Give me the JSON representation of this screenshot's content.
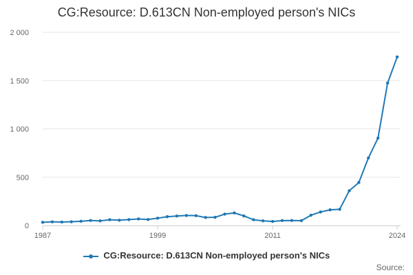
{
  "chart_data": {
    "type": "line",
    "title": "CG:Resource: D.613CN Non-employed person's NICs",
    "xlabel": "",
    "ylabel": "",
    "x": [
      1987,
      1988,
      1989,
      1990,
      1991,
      1992,
      1993,
      1994,
      1995,
      1996,
      1997,
      1998,
      1999,
      2000,
      2001,
      2002,
      2003,
      2004,
      2005,
      2006,
      2007,
      2008,
      2009,
      2010,
      2011,
      2012,
      2013,
      2014,
      2015,
      2016,
      2017,
      2018,
      2019,
      2020,
      2021,
      2022,
      2023,
      2024
    ],
    "series": [
      {
        "name": "CG:Resource: D.613CN Non-employed person's NICs",
        "color": "#1f78b4",
        "values": [
          33,
          38,
          36,
          39,
          44,
          52,
          48,
          60,
          55,
          61,
          68,
          62,
          76,
          91,
          98,
          104,
          102,
          83,
          85,
          118,
          130,
          99,
          60,
          48,
          42,
          51,
          52,
          50,
          106,
          140,
          162,
          168,
          360,
          445,
          700,
          905,
          1475,
          1745
        ]
      }
    ],
    "xticks": [
      "1987",
      "1999",
      "2011",
      "2024"
    ],
    "yticks": [
      {
        "value": 0,
        "label": "0"
      },
      {
        "value": 500,
        "label": "500"
      },
      {
        "value": 1000,
        "label": "1 000"
      },
      {
        "value": 1500,
        "label": "1 500"
      },
      {
        "value": 2000,
        "label": "2 000"
      }
    ],
    "ylim": [
      0,
      2000
    ],
    "xlim": [
      1987,
      2024
    ],
    "grid": true,
    "legend_position": "bottom"
  },
  "source_label": "Source:"
}
